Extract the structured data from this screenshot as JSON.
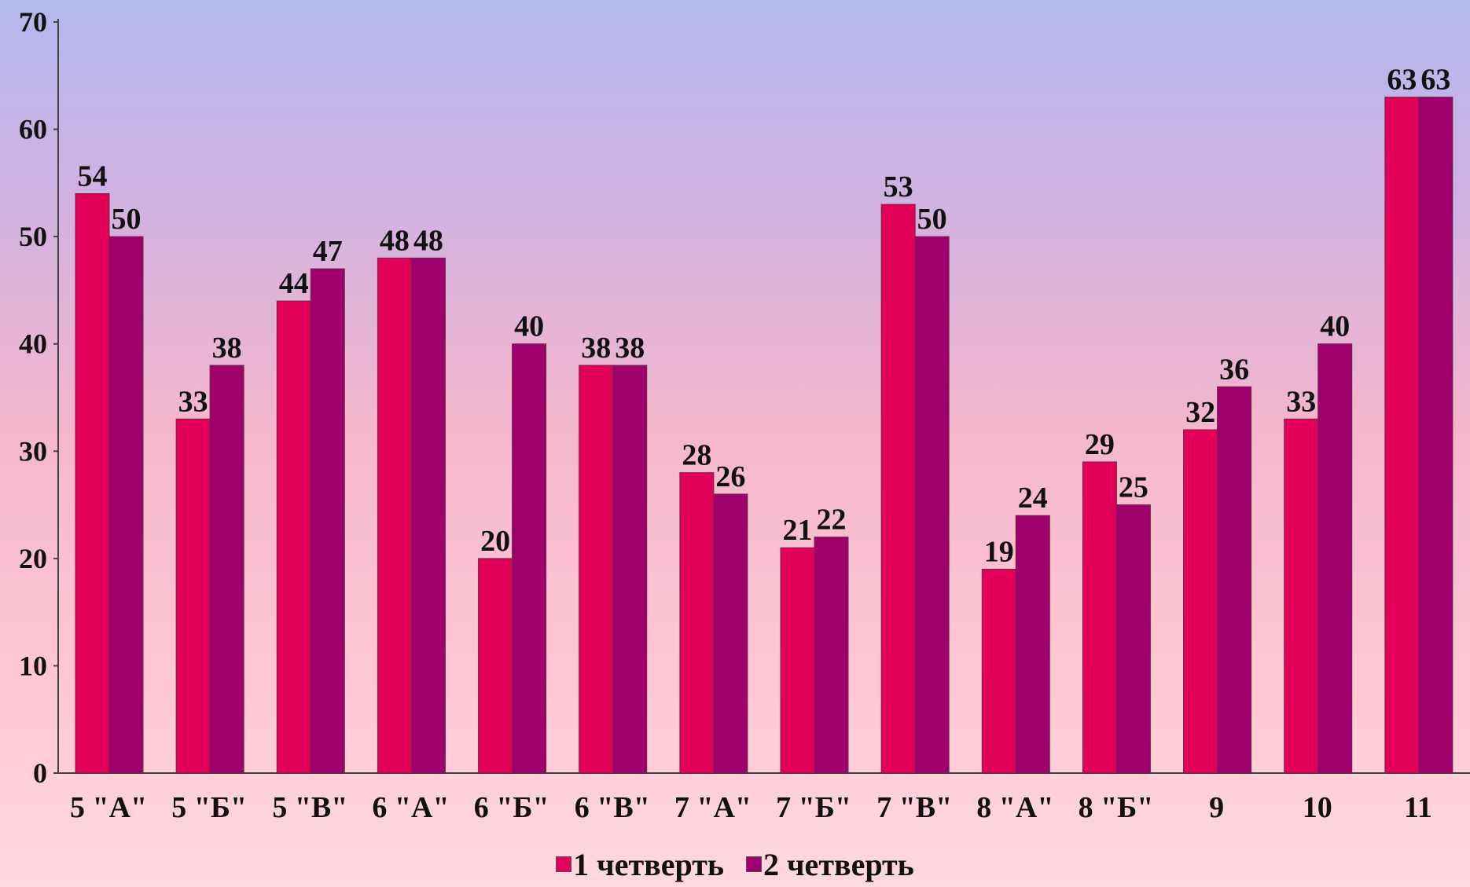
{
  "chart_data": {
    "type": "bar",
    "categories": [
      "5 \"А\"",
      "5 \"Б\"",
      "5 \"В\"",
      "6 \"А\"",
      "6 \"Б\"",
      "6 \"В\"",
      "7 \"А\"",
      "7 \"Б\"",
      "7 \"В\"",
      "8 \"А\"",
      "8 \"Б\"",
      "9",
      "10",
      "11"
    ],
    "series": [
      {
        "name": "1 четверть",
        "color": "#e2005a",
        "values": [
          54,
          33,
          44,
          48,
          20,
          38,
          28,
          21,
          53,
          19,
          29,
          32,
          33,
          63
        ]
      },
      {
        "name": "2 четверть",
        "color": "#a0006e",
        "values": [
          50,
          38,
          47,
          48,
          40,
          38,
          26,
          22,
          50,
          24,
          25,
          36,
          40,
          63
        ]
      }
    ],
    "ylim": [
      0,
      70
    ],
    "yticks": [
      "0",
      "10",
      "20",
      "30",
      "40",
      "50",
      "60",
      "70"
    ],
    "grid": false,
    "legend_position": "bottom",
    "title": "",
    "xlabel": "",
    "ylabel": ""
  }
}
